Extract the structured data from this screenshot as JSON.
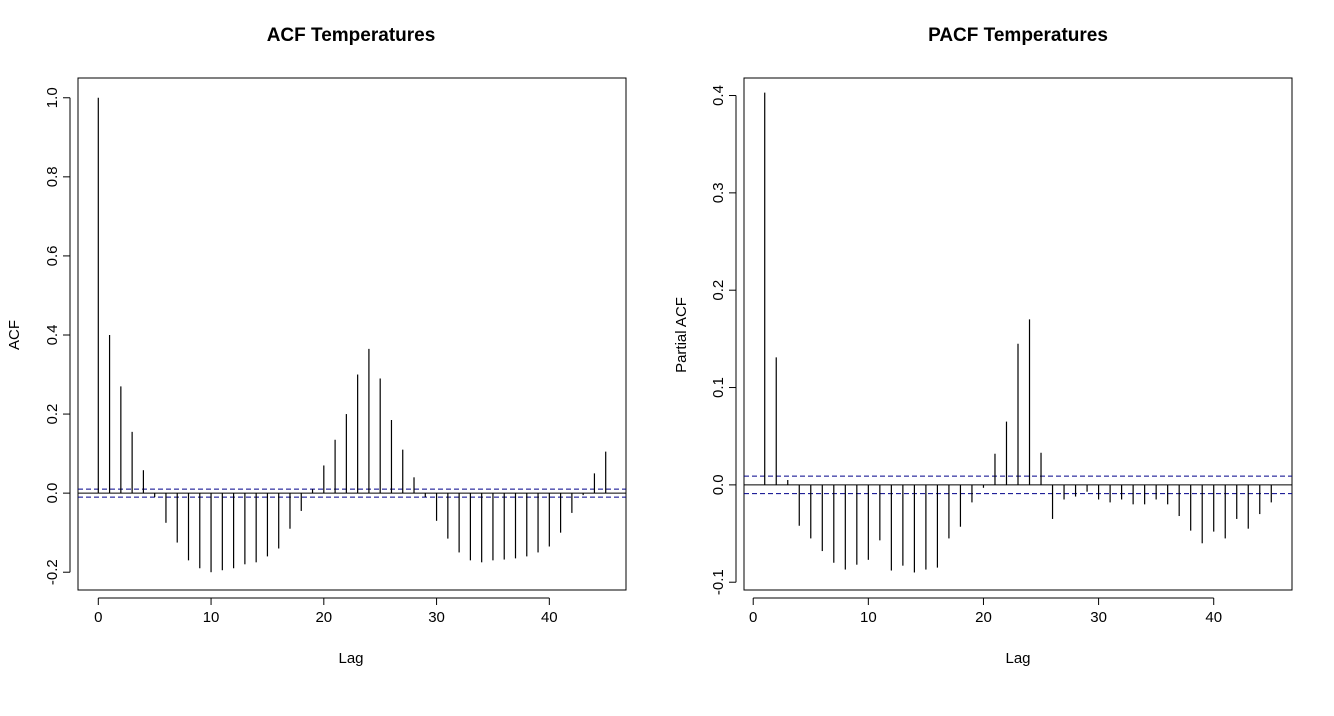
{
  "chart_data": [
    {
      "type": "bar",
      "title": "ACF Temperatures",
      "xlabel": "Lag",
      "ylabel": "ACF",
      "xlim": [
        -1.8,
        46.8
      ],
      "ylim": [
        -0.245,
        1.05
      ],
      "xticks": [
        0,
        10,
        20,
        30,
        40
      ],
      "yticks": [
        -0.2,
        0.0,
        0.2,
        0.4,
        0.6,
        0.8,
        1.0
      ],
      "ytick_labels": [
        "-0.2",
        "0.0",
        "0.2",
        "0.4",
        "0.6",
        "0.8",
        "1.0"
      ],
      "ci_upper": 0.01,
      "ci_lower": -0.01,
      "ci_color": "#00008b",
      "x": [
        0,
        1,
        2,
        3,
        4,
        5,
        6,
        7,
        8,
        9,
        10,
        11,
        12,
        13,
        14,
        15,
        16,
        17,
        18,
        19,
        20,
        21,
        22,
        23,
        24,
        25,
        26,
        27,
        28,
        29,
        30,
        31,
        32,
        33,
        34,
        35,
        36,
        37,
        38,
        39,
        40,
        41,
        42,
        43,
        44,
        45
      ],
      "values": [
        1.0,
        0.4,
        0.27,
        0.155,
        0.058,
        -0.01,
        -0.075,
        -0.125,
        -0.17,
        -0.19,
        -0.2,
        -0.195,
        -0.19,
        -0.18,
        -0.175,
        -0.16,
        -0.14,
        -0.09,
        -0.045,
        0.01,
        0.07,
        0.135,
        0.2,
        0.3,
        0.365,
        0.29,
        0.185,
        0.11,
        0.04,
        -0.01,
        -0.07,
        -0.115,
        -0.15,
        -0.17,
        -0.175,
        -0.17,
        -0.168,
        -0.165,
        -0.16,
        -0.15,
        -0.135,
        -0.1,
        -0.05,
        -0.005,
        0.05,
        0.105
      ]
    },
    {
      "type": "bar",
      "title": "PACF Temperatures",
      "xlabel": "Lag",
      "ylabel": "Partial ACF",
      "xlim": [
        -0.8,
        46.8
      ],
      "ylim": [
        -0.108,
        0.418
      ],
      "xticks": [
        0,
        10,
        20,
        30,
        40
      ],
      "yticks": [
        -0.1,
        0.0,
        0.1,
        0.2,
        0.3,
        0.4
      ],
      "ytick_labels": [
        "-0.1",
        "0.0",
        "0.1",
        "0.2",
        "0.3",
        "0.4"
      ],
      "ci_upper": 0.009,
      "ci_lower": -0.009,
      "ci_color": "#00008b",
      "x": [
        1,
        2,
        3,
        4,
        5,
        6,
        7,
        8,
        9,
        10,
        11,
        12,
        13,
        14,
        15,
        16,
        17,
        18,
        19,
        20,
        21,
        22,
        23,
        24,
        25,
        26,
        27,
        28,
        29,
        30,
        31,
        32,
        33,
        34,
        35,
        36,
        37,
        38,
        39,
        40,
        41,
        42,
        43,
        44,
        45
      ],
      "values": [
        0.403,
        0.131,
        0.005,
        -0.042,
        -0.055,
        -0.068,
        -0.08,
        -0.087,
        -0.082,
        -0.077,
        -0.057,
        -0.088,
        -0.083,
        -0.09,
        -0.087,
        -0.085,
        -0.055,
        -0.043,
        -0.018,
        -0.003,
        0.032,
        0.065,
        0.145,
        0.17,
        0.033,
        -0.035,
        -0.015,
        -0.012,
        -0.007,
        -0.015,
        -0.018,
        -0.015,
        -0.02,
        -0.02,
        -0.015,
        -0.02,
        -0.032,
        -0.047,
        -0.06,
        -0.048,
        -0.055,
        -0.035,
        -0.045,
        -0.03,
        -0.018
      ]
    }
  ]
}
